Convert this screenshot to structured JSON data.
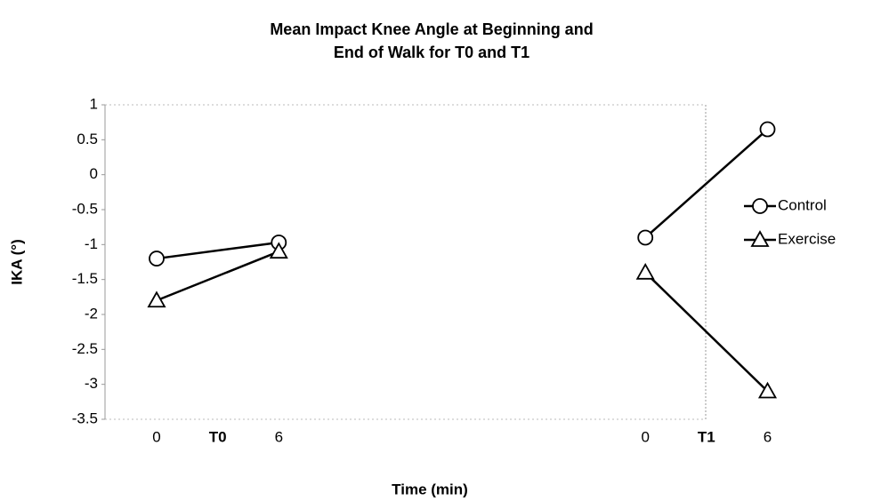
{
  "chart_data": {
    "type": "line",
    "title": "Mean Impact Knee Angle at Beginning and End of Walk for T0 and T1",
    "x_label": "Time (min)",
    "y_label": "IKA (°)",
    "categories": [
      "0",
      "6",
      null,
      null,
      "0",
      "6"
    ],
    "group_labels": [
      "T0",
      "T1"
    ],
    "series": [
      {
        "name": "Control",
        "color": "#000000",
        "marker": "circle",
        "values": [
          -1.2,
          -0.97,
          null,
          null,
          -0.9,
          0.65
        ]
      },
      {
        "name": "Exercise",
        "color": "#000000",
        "marker": "triangle",
        "values": [
          -1.8,
          -1.1,
          null,
          null,
          -1.4,
          -3.1
        ]
      }
    ],
    "ylim": [
      -3.5,
      1
    ],
    "yticks": [
      1,
      0.5,
      0,
      -0.5,
      -1,
      -1.5,
      -2,
      -2.5,
      -3,
      -3.5
    ],
    "legend": "right"
  }
}
